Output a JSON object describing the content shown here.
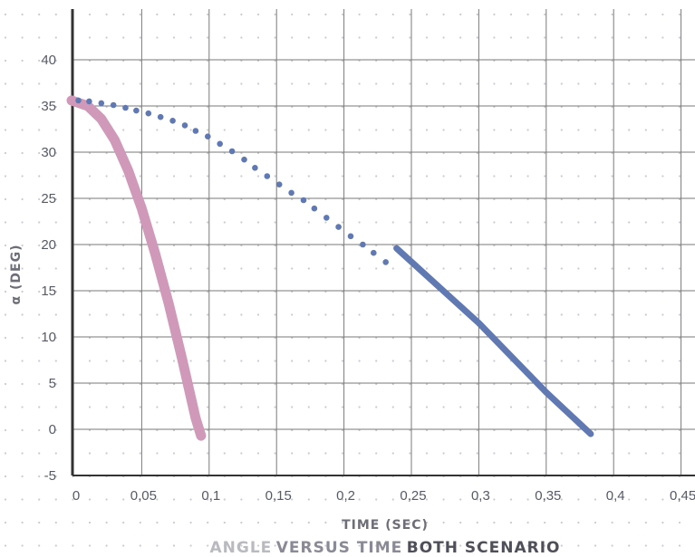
{
  "chart_data": {
    "type": "line",
    "xlabel": "TIME (SEC)",
    "ylabel": "α (DEG)",
    "caption": {
      "part1": "ANGLE",
      "part2": "VERSUS TIME",
      "part3": "BOTH SCENARIO"
    },
    "xlim": [
      0,
      0.45
    ],
    "ylim": [
      -5,
      40
    ],
    "x_ticks": [
      0,
      0.05,
      0.1,
      0.15,
      0.2,
      0.25,
      0.3,
      0.35,
      0.4,
      0.45
    ],
    "x_tick_labels": [
      "0",
      "0,05",
      "0,1",
      "0,15",
      "0,2",
      "0,25",
      "0,3",
      "0,35",
      "0,4",
      "0,45"
    ],
    "y_ticks": [
      -5,
      0,
      5,
      10,
      15,
      20,
      25,
      30,
      35,
      40
    ],
    "y_tick_labels": [
      "-5",
      "0",
      "5",
      "10",
      "15",
      "20",
      "25",
      "30",
      "35",
      "40"
    ],
    "grid": true,
    "series": [
      {
        "style": "thick-line",
        "color": "#d199b9",
        "x": [
          -0.002,
          0.01,
          0.02,
          0.03,
          0.04,
          0.05,
          0.06,
          0.07,
          0.08,
          0.09,
          0.094
        ],
        "y": [
          35.6,
          35.0,
          33.6,
          31.3,
          28.0,
          23.9,
          19.0,
          13.6,
          7.6,
          1.2,
          -0.7
        ]
      },
      {
        "style": "dotted",
        "color": "#6079b3",
        "x": [
          0.003,
          0.011,
          0.02,
          0.029,
          0.038,
          0.046,
          0.055,
          0.064,
          0.073,
          0.082,
          0.09,
          0.099,
          0.108,
          0.117,
          0.126,
          0.134,
          0.143,
          0.152,
          0.161,
          0.17,
          0.178,
          0.187,
          0.196,
          0.205,
          0.214,
          0.222,
          0.231
        ],
        "y": [
          35.6,
          35.5,
          35.3,
          35.1,
          34.8,
          34.5,
          34.2,
          33.8,
          33.4,
          32.9,
          32.3,
          31.7,
          30.9,
          30.1,
          29.2,
          28.3,
          27.4,
          26.5,
          25.6,
          24.8,
          23.9,
          22.9,
          21.9,
          20.9,
          20.0,
          19.1,
          18.1
        ]
      },
      {
        "style": "solid-line",
        "color": "#6079b3",
        "x": [
          0.239,
          0.3,
          0.35,
          0.383
        ],
        "y": [
          19.6,
          11.5,
          4.0,
          -0.5
        ]
      }
    ]
  }
}
